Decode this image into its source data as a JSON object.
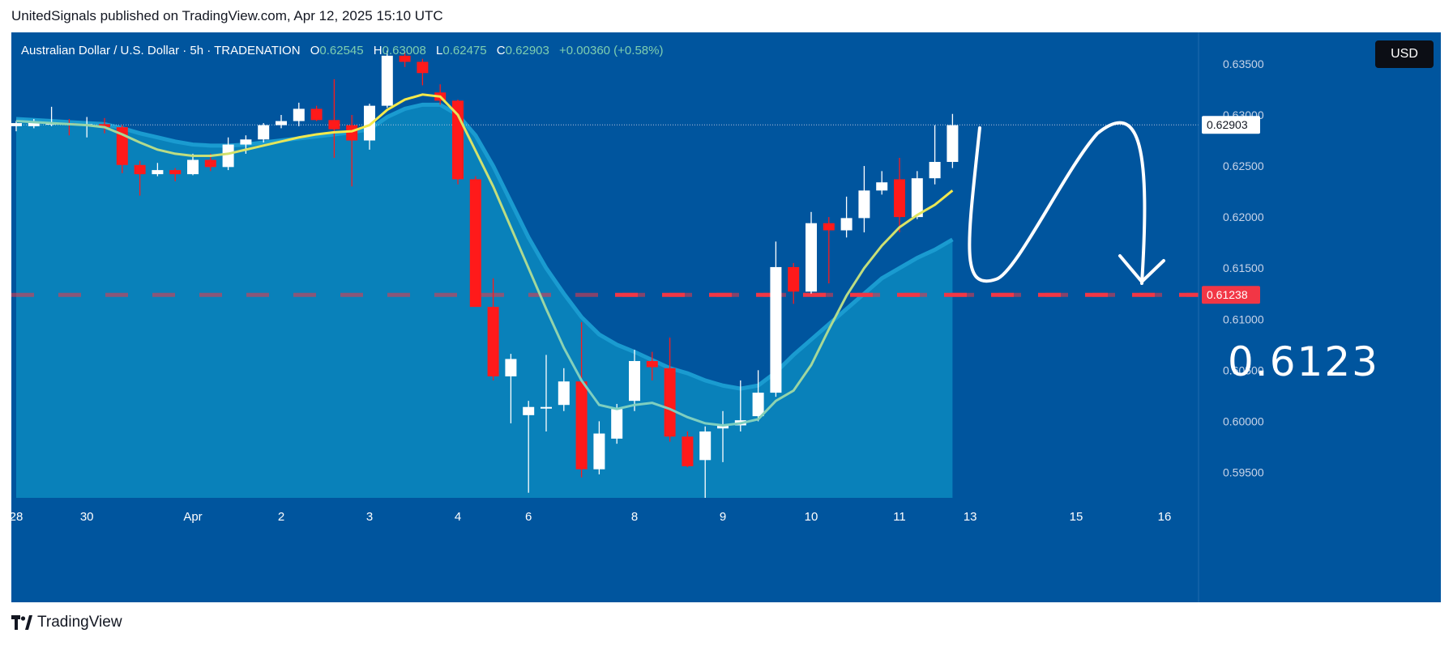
{
  "header": {
    "publisher_line": "UnitedSignals published on TradingView.com, Apr 12, 2025 15:10 UTC"
  },
  "legend": {
    "symbol": "Australian Dollar / U.S. Dollar · 5h · TRADENATION",
    "o_label": "O",
    "o_value": "0.62545",
    "h_label": "H",
    "h_value": "0.63008",
    "l_label": "L",
    "l_value": "0.62475",
    "c_label": "C",
    "c_value": "0.62903",
    "change": "+0.00360 (+0.58%)"
  },
  "currency_button": "USD",
  "annotation": {
    "target_text": "0.6123"
  },
  "footer": {
    "brand": "TradingView"
  },
  "colors": {
    "background": "#00559e",
    "up_candle": "#ffffff",
    "down_candle": "#ff1a1a",
    "fast_ma": "#f5e94a",
    "slow_ma": "#7ecfc0",
    "area_fill": "#0a86bd",
    "target_line": "#f23645",
    "last_price_line": "#b0c4de"
  },
  "chart_data": {
    "type": "candlestick",
    "y_axis": {
      "range": [
        0.5925,
        0.6365
      ],
      "ticks": [
        "0.63500",
        "0.63000",
        "0.62500",
        "0.62000",
        "0.61500",
        "0.61000",
        "0.60500",
        "0.60000",
        "0.59500"
      ],
      "tick_values": [
        0.635,
        0.63,
        0.625,
        0.62,
        0.615,
        0.61,
        0.605,
        0.6,
        0.595
      ]
    },
    "x_axis": {
      "labels": [
        "28",
        "30",
        "Apr",
        "2",
        "3",
        "4",
        "6",
        "8",
        "9",
        "10",
        "11",
        "13",
        "15",
        "16"
      ],
      "label_indices": [
        0,
        4,
        10,
        15,
        20,
        25,
        29,
        35,
        40,
        45,
        50,
        54,
        60,
        65
      ]
    },
    "last_price": {
      "value": 0.62903,
      "label": "0.62903"
    },
    "target_price": {
      "value": 0.61238,
      "label": "0.61238"
    },
    "candles": [
      {
        "o": 0.6289,
        "h": 0.6294,
        "l": 0.6284,
        "c": 0.6292
      },
      {
        "o": 0.6289,
        "h": 0.6296,
        "l": 0.6287,
        "c": 0.6293
      },
      {
        "o": 0.6292,
        "h": 0.6308,
        "l": 0.6289,
        "c": 0.6292
      },
      {
        "o": 0.6292,
        "h": 0.6296,
        "l": 0.628,
        "c": 0.6291
      },
      {
        "o": 0.6291,
        "h": 0.6298,
        "l": 0.6278,
        "c": 0.6291
      },
      {
        "o": 0.6291,
        "h": 0.6297,
        "l": 0.6282,
        "c": 0.6288
      },
      {
        "o": 0.6288,
        "h": 0.629,
        "l": 0.6243,
        "c": 0.6251
      },
      {
        "o": 0.6251,
        "h": 0.6255,
        "l": 0.6221,
        "c": 0.6242
      },
      {
        "o": 0.6242,
        "h": 0.6253,
        "l": 0.624,
        "c": 0.6246
      },
      {
        "o": 0.6246,
        "h": 0.6248,
        "l": 0.6235,
        "c": 0.6242
      },
      {
        "o": 0.6242,
        "h": 0.6262,
        "l": 0.6241,
        "c": 0.6256
      },
      {
        "o": 0.6256,
        "h": 0.6262,
        "l": 0.6245,
        "c": 0.6249
      },
      {
        "o": 0.6249,
        "h": 0.6278,
        "l": 0.6246,
        "c": 0.6271
      },
      {
        "o": 0.6271,
        "h": 0.628,
        "l": 0.6262,
        "c": 0.6276
      },
      {
        "o": 0.6276,
        "h": 0.6292,
        "l": 0.6273,
        "c": 0.629
      },
      {
        "o": 0.629,
        "h": 0.63,
        "l": 0.6287,
        "c": 0.6294
      },
      {
        "o": 0.6294,
        "h": 0.6312,
        "l": 0.6289,
        "c": 0.6306
      },
      {
        "o": 0.6306,
        "h": 0.6309,
        "l": 0.6294,
        "c": 0.6295
      },
      {
        "o": 0.6295,
        "h": 0.6335,
        "l": 0.6258,
        "c": 0.6286
      },
      {
        "o": 0.629,
        "h": 0.63,
        "l": 0.623,
        "c": 0.6275
      },
      {
        "o": 0.6275,
        "h": 0.6311,
        "l": 0.6266,
        "c": 0.6309
      },
      {
        "o": 0.6309,
        "h": 0.6363,
        "l": 0.6307,
        "c": 0.6358
      },
      {
        "o": 0.6358,
        "h": 0.6362,
        "l": 0.6347,
        "c": 0.6352
      },
      {
        "o": 0.6352,
        "h": 0.6355,
        "l": 0.6329,
        "c": 0.6341
      },
      {
        "o": 0.6322,
        "h": 0.633,
        "l": 0.631,
        "c": 0.6314
      },
      {
        "o": 0.6314,
        "h": 0.6315,
        "l": 0.6232,
        "c": 0.6237
      },
      {
        "o": 0.6237,
        "h": 0.624,
        "l": 0.6112,
        "c": 0.6112
      },
      {
        "o": 0.6112,
        "h": 0.614,
        "l": 0.604,
        "c": 0.6044
      },
      {
        "o": 0.6044,
        "h": 0.6066,
        "l": 0.5998,
        "c": 0.6061
      },
      {
        "o": 0.6006,
        "h": 0.602,
        "l": 0.593,
        "c": 0.6014
      },
      {
        "o": 0.6014,
        "h": 0.6065,
        "l": 0.599,
        "c": 0.6014
      },
      {
        "o": 0.6016,
        "h": 0.6052,
        "l": 0.601,
        "c": 0.6039
      },
      {
        "o": 0.6039,
        "h": 0.6097,
        "l": 0.5945,
        "c": 0.5953
      },
      {
        "o": 0.5953,
        "h": 0.6,
        "l": 0.5948,
        "c": 0.5988
      },
      {
        "o": 0.5983,
        "h": 0.6017,
        "l": 0.5978,
        "c": 0.6012
      },
      {
        "o": 0.602,
        "h": 0.607,
        "l": 0.601,
        "c": 0.6059
      },
      {
        "o": 0.6059,
        "h": 0.6068,
        "l": 0.604,
        "c": 0.6053
      },
      {
        "o": 0.6052,
        "h": 0.6082,
        "l": 0.598,
        "c": 0.5985
      },
      {
        "o": 0.5985,
        "h": 0.599,
        "l": 0.5955,
        "c": 0.5956
      },
      {
        "o": 0.5962,
        "h": 0.5995,
        "l": 0.5925,
        "c": 0.599
      },
      {
        "o": 0.5993,
        "h": 0.601,
        "l": 0.596,
        "c": 0.5996
      },
      {
        "o": 0.5996,
        "h": 0.604,
        "l": 0.599,
        "c": 0.6001
      },
      {
        "o": 0.6005,
        "h": 0.605,
        "l": 0.6,
        "c": 0.6028
      },
      {
        "o": 0.6028,
        "h": 0.6176,
        "l": 0.6024,
        "c": 0.6151
      },
      {
        "o": 0.6151,
        "h": 0.6155,
        "l": 0.6115,
        "c": 0.6127
      },
      {
        "o": 0.6127,
        "h": 0.6205,
        "l": 0.6125,
        "c": 0.6194
      },
      {
        "o": 0.6194,
        "h": 0.62,
        "l": 0.6135,
        "c": 0.6187
      },
      {
        "o": 0.6187,
        "h": 0.622,
        "l": 0.618,
        "c": 0.6199
      },
      {
        "o": 0.6199,
        "h": 0.625,
        "l": 0.6185,
        "c": 0.6226
      },
      {
        "o": 0.6226,
        "h": 0.6245,
        "l": 0.6222,
        "c": 0.6234
      },
      {
        "o": 0.6237,
        "h": 0.6258,
        "l": 0.6185,
        "c": 0.62
      },
      {
        "o": 0.62,
        "h": 0.6245,
        "l": 0.6198,
        "c": 0.6238
      },
      {
        "o": 0.6238,
        "h": 0.629,
        "l": 0.6232,
        "c": 0.6254
      },
      {
        "o": 0.6254,
        "h": 0.6301,
        "l": 0.6248,
        "c": 0.629
      }
    ],
    "fast_ma": [
      0.6294,
      0.6293,
      0.6292,
      0.6291,
      0.629,
      0.6288,
      0.6281,
      0.6273,
      0.6266,
      0.6262,
      0.626,
      0.626,
      0.6262,
      0.6266,
      0.627,
      0.6274,
      0.6278,
      0.6281,
      0.6283,
      0.6284,
      0.629,
      0.6305,
      0.6315,
      0.632,
      0.6318,
      0.63,
      0.6265,
      0.623,
      0.619,
      0.615,
      0.611,
      0.6072,
      0.604,
      0.6016,
      0.6012,
      0.6016,
      0.6018,
      0.6012,
      0.6004,
      0.5998,
      0.5996,
      0.5998,
      0.6002,
      0.602,
      0.603,
      0.6055,
      0.609,
      0.6123,
      0.615,
      0.6172,
      0.619,
      0.6202,
      0.6212,
      0.6226
    ],
    "slow_ma": [
      0.6296,
      0.6295,
      0.6294,
      0.6293,
      0.6292,
      0.6291,
      0.6287,
      0.6282,
      0.6278,
      0.6274,
      0.6271,
      0.627,
      0.627,
      0.6271,
      0.6273,
      0.6275,
      0.6277,
      0.6279,
      0.6281,
      0.6283,
      0.6286,
      0.6298,
      0.6306,
      0.631,
      0.631,
      0.63,
      0.628,
      0.625,
      0.6215,
      0.618,
      0.615,
      0.6125,
      0.6102,
      0.6085,
      0.6075,
      0.6068,
      0.606,
      0.6052,
      0.6047,
      0.604,
      0.6035,
      0.6032,
      0.6035,
      0.6048,
      0.6065,
      0.608,
      0.6095,
      0.611,
      0.6125,
      0.614,
      0.615,
      0.616,
      0.6168,
      0.6178
    ]
  }
}
